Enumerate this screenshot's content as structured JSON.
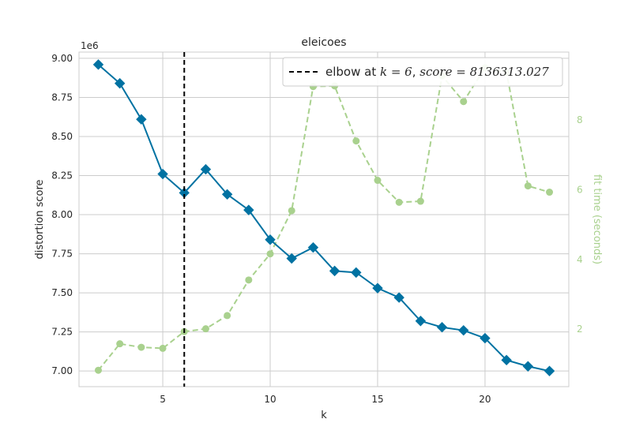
{
  "chart_data": {
    "type": "line",
    "title": "eleicoes",
    "xlabel": "k",
    "ylabel": "distortion score",
    "y2label": "fit time (seconds)",
    "y_offset_label": "1e6",
    "xlim": [
      1.1,
      23.9
    ],
    "ylim": [
      6.9,
      9.04
    ],
    "y2lim": [
      0.35,
      9.95
    ],
    "x_ticks": [
      5,
      10,
      15,
      20
    ],
    "y_ticks": [
      7.0,
      7.25,
      7.5,
      7.75,
      8.0,
      8.25,
      8.5,
      8.75,
      9.0
    ],
    "y_tick_labels": [
      "7.00",
      "7.25",
      "7.50",
      "7.75",
      "8.00",
      "8.25",
      "8.50",
      "8.75",
      "9.00"
    ],
    "y2_ticks": [
      2,
      4,
      6,
      8
    ],
    "grid": true,
    "x": [
      2,
      3,
      4,
      5,
      6,
      7,
      8,
      9,
      10,
      11,
      12,
      13,
      14,
      15,
      16,
      17,
      18,
      19,
      20,
      21,
      22,
      23
    ],
    "series": [
      {
        "axis": "left",
        "color": "#0072a2",
        "marker": "diamond",
        "style": "solid",
        "values": [
          8.96,
          8.84,
          8.61,
          8.26,
          8.14,
          8.29,
          8.13,
          8.03,
          7.84,
          7.72,
          7.79,
          7.64,
          7.63,
          7.53,
          7.47,
          7.32,
          7.28,
          7.26,
          7.21,
          7.07,
          7.03,
          7.0
        ]
      },
      {
        "axis": "right",
        "color": "#a9d18e",
        "marker": "circle",
        "style": "dashed",
        "values": [
          0.82,
          1.58,
          1.48,
          1.45,
          1.93,
          2.01,
          2.39,
          3.41,
          4.16,
          5.4,
          8.96,
          8.98,
          7.4,
          6.27,
          5.64,
          5.67,
          9.27,
          8.53,
          9.5,
          9.37,
          6.11,
          5.93
        ]
      }
    ],
    "elbow": {
      "k": 6,
      "label": "elbow at $k = 6$, $score = 8136313.027$",
      "color": "#000000"
    },
    "legend_position": "top-right"
  }
}
